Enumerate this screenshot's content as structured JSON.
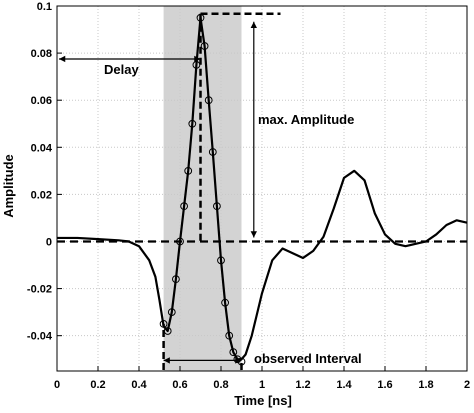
{
  "chart_data": {
    "type": "line",
    "title": "",
    "xlabel": "Time [ns]",
    "ylabel": "Amplitude",
    "xlim": [
      0,
      2
    ],
    "ylim": [
      -0.055,
      0.1
    ],
    "grid": true,
    "x_ticks": [
      "0",
      "0.2",
      "0.4",
      "0.6",
      "0.8",
      "1",
      "1.2",
      "1.4",
      "1.6",
      "1.8",
      "2"
    ],
    "y_ticks": [
      "-0.04",
      "-0.02",
      "0",
      "0.02",
      "0.04",
      "0.06",
      "0.08",
      "0.1"
    ],
    "y_tick_values": [
      -0.04,
      -0.02,
      0,
      0.02,
      0.04,
      0.06,
      0.08,
      0.1
    ],
    "series": [
      {
        "style": "solid",
        "x": [
          0,
          0.1,
          0.2,
          0.3,
          0.35,
          0.4,
          0.45,
          0.48,
          0.5,
          0.52,
          0.54,
          0.56,
          0.58,
          0.6,
          0.62,
          0.64,
          0.66,
          0.68,
          0.7,
          0.72,
          0.74,
          0.76,
          0.78,
          0.8,
          0.82,
          0.84,
          0.86,
          0.88,
          0.9,
          0.92,
          0.95,
          1.0,
          1.05,
          1.1,
          1.15,
          1.2,
          1.25,
          1.3,
          1.35,
          1.4,
          1.45,
          1.5,
          1.55,
          1.6,
          1.65,
          1.7,
          1.75,
          1.8,
          1.85,
          1.9,
          1.95,
          2.0
        ],
        "y": [
          0.0015,
          0.0015,
          0.001,
          0.0005,
          0.0,
          -0.002,
          -0.008,
          -0.015,
          -0.025,
          -0.036,
          -0.038,
          -0.03,
          -0.016,
          0.0,
          0.015,
          0.03,
          0.05,
          0.075,
          0.095,
          0.083,
          0.06,
          0.038,
          0.015,
          -0.008,
          -0.026,
          -0.04,
          -0.047,
          -0.05,
          -0.05,
          -0.048,
          -0.04,
          -0.022,
          -0.008,
          -0.003,
          -0.005,
          -0.007,
          -0.004,
          0.002,
          0.014,
          0.027,
          0.03,
          0.026,
          0.012,
          0.003,
          -0.001,
          -0.002,
          -0.001,
          0.0,
          0.003,
          0.007,
          0.009,
          0.008
        ]
      },
      {
        "style": "markers",
        "marker": "circle",
        "x": [
          0.52,
          0.54,
          0.56,
          0.58,
          0.6,
          0.62,
          0.64,
          0.66,
          0.68,
          0.7,
          0.72,
          0.74,
          0.76,
          0.78,
          0.8,
          0.82,
          0.84,
          0.86,
          0.88,
          0.9
        ],
        "y": [
          -0.035,
          -0.038,
          -0.03,
          -0.016,
          0.0,
          0.015,
          0.03,
          0.05,
          0.075,
          0.095,
          0.083,
          0.06,
          0.038,
          0.015,
          -0.008,
          -0.026,
          -0.04,
          -0.047,
          -0.05,
          -0.051
        ]
      },
      {
        "style": "dashed",
        "x": [
          0,
          2
        ],
        "y": [
          0,
          0
        ]
      }
    ],
    "observed_interval": {
      "x_start": 0.52,
      "x_end": 0.9
    },
    "peak": {
      "x": 0.7,
      "y": 0.095
    },
    "annotations": {
      "delay": "Delay",
      "max_amplitude": "max. Amplitude",
      "observed_interval": "observed Interval"
    },
    "colors": {
      "shade": "#d3d3d3",
      "line": "#000000",
      "grid": "#c8c8c8"
    }
  }
}
